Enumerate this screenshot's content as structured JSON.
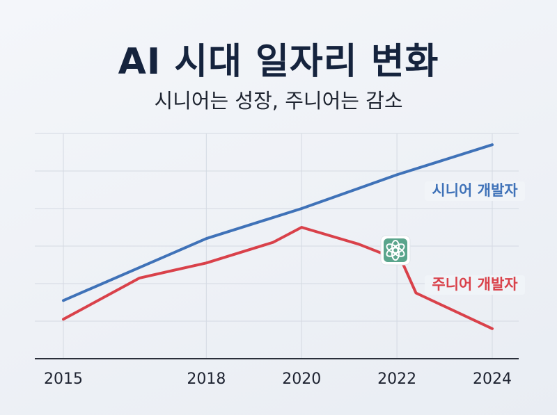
{
  "title": "AI 시대 일자리 변화",
  "subtitle": "시니어는 성장, 주니어는 감소",
  "colors": {
    "senior": "#3f72b8",
    "junior": "#d9414a",
    "grid": "#d4d9e2",
    "axis": "#2a2f3a",
    "badge": "#5aa58c"
  },
  "chart_data": {
    "type": "line",
    "title": "",
    "xlabel": "",
    "ylabel": "",
    "x_ticks": [
      "2015",
      "2018",
      "2020",
      "2022",
      "2024"
    ],
    "xlim": [
      2015,
      2024
    ],
    "ylim": [
      0,
      6
    ],
    "grid": true,
    "series": [
      {
        "name": "시니어 개발자",
        "x": [
          2015,
          2018,
          2020,
          2022,
          2024
        ],
        "values": [
          1.55,
          3.2,
          4.0,
          4.9,
          5.7
        ]
      },
      {
        "name": "주니어 개발자",
        "x": [
          2015,
          2016.6,
          2018,
          2019.4,
          2020,
          2021.2,
          2022.1,
          2022.4,
          2024
        ],
        "values": [
          1.05,
          2.15,
          2.55,
          3.1,
          3.5,
          3.05,
          2.6,
          1.75,
          0.8
        ]
      }
    ],
    "annotations": [
      {
        "icon": "openai-logo-icon",
        "x": 2022,
        "y": 2.85
      }
    ]
  }
}
